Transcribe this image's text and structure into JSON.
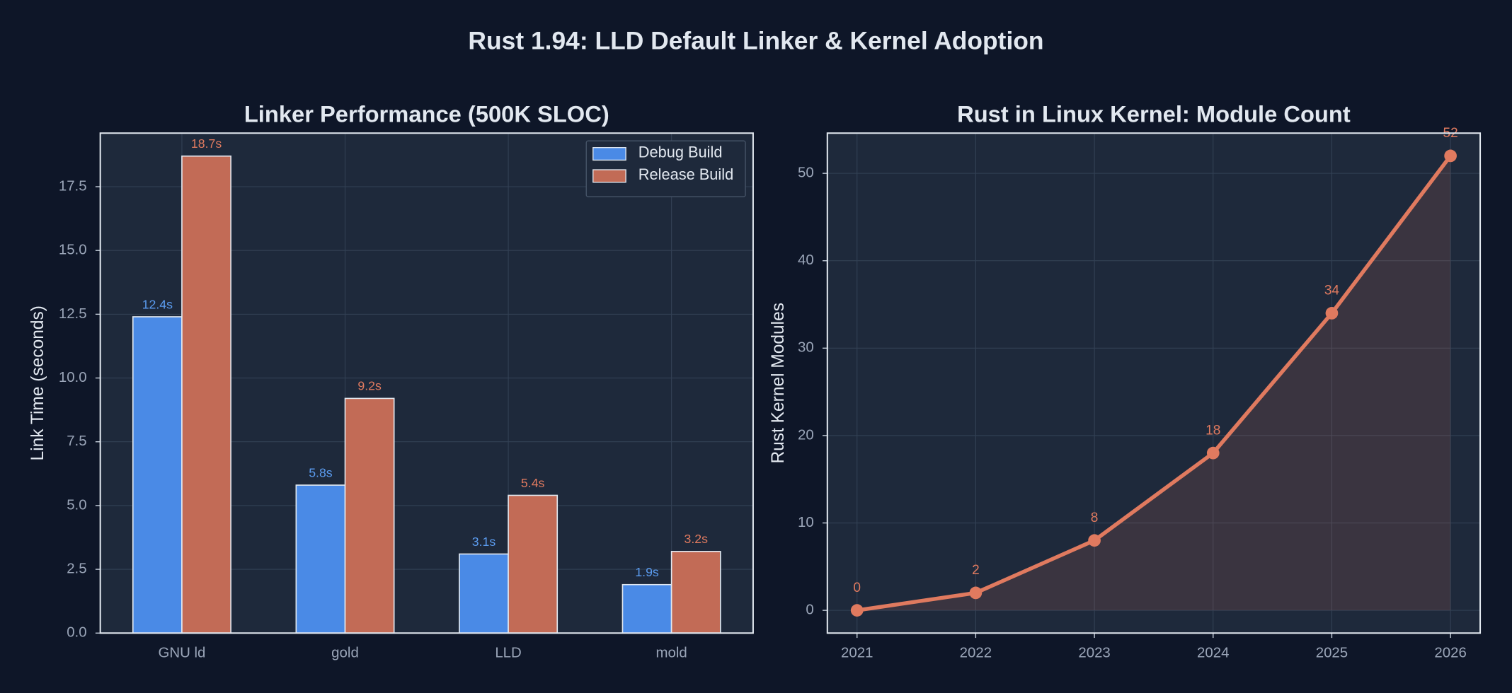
{
  "title": "Rust 1.94: LLD Default Linker & Kernel Adoption",
  "chart_data": [
    {
      "type": "bar",
      "title": "Linker Performance (500K SLOC)",
      "ylabel": "Link Time (seconds)",
      "categories": [
        "GNU ld",
        "gold",
        "LLD",
        "mold"
      ],
      "series": [
        {
          "name": "Debug Build",
          "color": "#4a8ae6",
          "label_color": "#5b9cf0",
          "values": [
            12.4,
            5.8,
            3.1,
            1.9
          ],
          "value_labels": [
            "12.4s",
            "5.8s",
            "3.1s",
            "1.9s"
          ]
        },
        {
          "name": "Release Build",
          "color": "#c26b56",
          "label_color": "#e07a5f",
          "values": [
            18.7,
            9.2,
            5.4,
            3.2
          ],
          "value_labels": [
            "18.7s",
            "9.2s",
            "5.4s",
            "3.2s"
          ]
        }
      ],
      "ylim": [
        0,
        19.6
      ],
      "yticks": [
        {
          "value": 0,
          "label": "0.0"
        },
        2.5,
        {
          "value": 5,
          "label": "5.0"
        },
        7.5,
        {
          "value": 10,
          "label": "10.0"
        },
        12.5,
        {
          "value": 15,
          "label": "15.0"
        },
        17.5
      ],
      "grid": true,
      "legend": "upper-right"
    },
    {
      "type": "line",
      "title": "Rust in Linux Kernel: Module Count",
      "ylabel": "Rust Kernel Modules",
      "x": [
        2021,
        2022,
        2023,
        2024,
        2025,
        2026
      ],
      "series": [
        {
          "color": "#e07a5f",
          "values": [
            0,
            2,
            8,
            18,
            34,
            52
          ]
        }
      ],
      "xlim": [
        2020.75,
        2026.25
      ],
      "xticks": [
        2021,
        2022,
        2023,
        2024,
        2025,
        2026
      ],
      "ylim": [
        -2.6,
        54.6
      ],
      "yticks": [
        0,
        10,
        20,
        30,
        40,
        50
      ],
      "grid": true,
      "fill": true
    }
  ]
}
